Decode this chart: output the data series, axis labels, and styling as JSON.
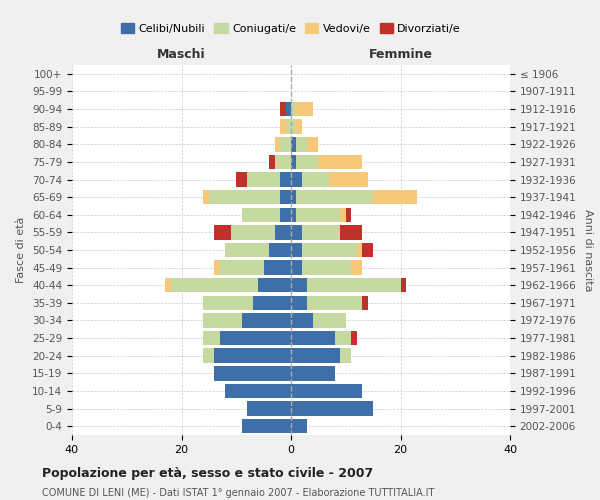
{
  "age_groups": [
    "0-4",
    "5-9",
    "10-14",
    "15-19",
    "20-24",
    "25-29",
    "30-34",
    "35-39",
    "40-44",
    "45-49",
    "50-54",
    "55-59",
    "60-64",
    "65-69",
    "70-74",
    "75-79",
    "80-84",
    "85-89",
    "90-94",
    "95-99",
    "100+"
  ],
  "birth_years": [
    "2002-2006",
    "1997-2001",
    "1992-1996",
    "1987-1991",
    "1982-1986",
    "1977-1981",
    "1972-1976",
    "1967-1971",
    "1962-1966",
    "1957-1961",
    "1952-1956",
    "1947-1951",
    "1942-1946",
    "1937-1941",
    "1932-1936",
    "1927-1931",
    "1922-1926",
    "1917-1921",
    "1912-1916",
    "1907-1911",
    "≤ 1906"
  ],
  "maschi": {
    "celibi": [
      9,
      8,
      12,
      14,
      14,
      13,
      9,
      7,
      6,
      5,
      4,
      3,
      2,
      2,
      2,
      0,
      0,
      0,
      1,
      0,
      0
    ],
    "coniugati": [
      0,
      0,
      0,
      0,
      2,
      3,
      7,
      9,
      16,
      8,
      8,
      8,
      7,
      13,
      6,
      3,
      2,
      1,
      0,
      0,
      0
    ],
    "vedovi": [
      0,
      0,
      0,
      0,
      0,
      0,
      0,
      0,
      1,
      1,
      0,
      0,
      0,
      1,
      0,
      0,
      1,
      1,
      0,
      0,
      0
    ],
    "divorziati": [
      0,
      0,
      0,
      0,
      0,
      0,
      0,
      0,
      0,
      0,
      0,
      3,
      0,
      0,
      2,
      1,
      0,
      0,
      1,
      0,
      0
    ]
  },
  "femmine": {
    "nubili": [
      3,
      15,
      13,
      8,
      9,
      8,
      4,
      3,
      3,
      2,
      2,
      2,
      1,
      1,
      2,
      1,
      1,
      0,
      0,
      0,
      0
    ],
    "coniugate": [
      0,
      0,
      0,
      0,
      2,
      3,
      6,
      10,
      17,
      9,
      10,
      7,
      8,
      14,
      5,
      4,
      2,
      1,
      1,
      0,
      0
    ],
    "vedove": [
      0,
      0,
      0,
      0,
      0,
      0,
      0,
      0,
      0,
      2,
      1,
      0,
      1,
      8,
      7,
      8,
      2,
      1,
      3,
      0,
      0
    ],
    "divorziate": [
      0,
      0,
      0,
      0,
      0,
      1,
      0,
      1,
      1,
      0,
      2,
      4,
      1,
      0,
      0,
      0,
      0,
      0,
      0,
      0,
      0
    ]
  },
  "colors": {
    "celibi_nubili": "#3e6fa8",
    "coniugati": "#c5d9a0",
    "vedovi": "#f5c87a",
    "divorziati": "#c0312b"
  },
  "xlim": 40,
  "title": "Popolazione per età, sesso e stato civile - 2007",
  "subtitle": "COMUNE DI LENI (ME) - Dati ISTAT 1° gennaio 2007 - Elaborazione TUTTITALIA.IT",
  "ylabel": "Fasce di età",
  "ylabel_right": "Anni di nascita",
  "xlabel_left": "Maschi",
  "xlabel_right": "Femmine",
  "bg_color": "#f0f0f0",
  "plot_bg_color": "#ffffff",
  "xticks": [
    -40,
    -20,
    0,
    20,
    40
  ]
}
